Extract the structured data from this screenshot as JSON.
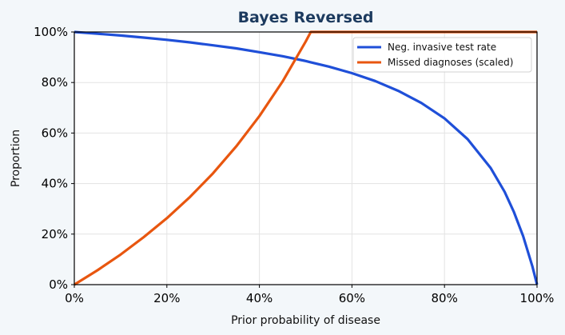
{
  "chart_data": {
    "type": "line",
    "title": "Bayes Reversed",
    "xlabel": "Prior probability of disease",
    "ylabel": "Proportion",
    "xlim": [
      0,
      100
    ],
    "ylim": [
      0,
      100
    ],
    "x_ticks": [
      "0%",
      "20%",
      "40%",
      "60%",
      "80%",
      "100%"
    ],
    "y_ticks": [
      "0%",
      "20%",
      "40%",
      "60%",
      "80%",
      "100%"
    ],
    "grid": true,
    "legend": "top-right",
    "x": [
      0,
      5,
      10,
      15,
      20,
      25,
      30,
      35,
      40,
      45,
      50,
      51.1,
      55,
      60,
      65,
      70,
      75,
      80,
      85,
      90,
      93,
      95,
      97,
      99,
      100
    ],
    "series": [
      {
        "name": "Neg. invasive test rate",
        "color": "#1f4fd8",
        "values": [
          100,
          99.3,
          98.6,
          97.8,
          96.9,
          95.9,
          94.7,
          93.5,
          92.0,
          90.4,
          88.5,
          88.0,
          86.3,
          83.7,
          80.6,
          76.7,
          71.9,
          65.8,
          57.6,
          46.1,
          36.7,
          28.8,
          19.2,
          7.2,
          0
        ]
      },
      {
        "name": "Missed diagnoses (scaled)",
        "color": "#e8560f",
        "values": [
          0,
          5.7,
          11.9,
          18.8,
          26.3,
          34.7,
          44.1,
          54.7,
          66.7,
          80.4,
          96.2,
          100,
          100,
          100,
          100,
          100,
          100,
          100,
          100,
          100,
          100,
          100,
          100,
          100,
          100
        ]
      }
    ]
  }
}
